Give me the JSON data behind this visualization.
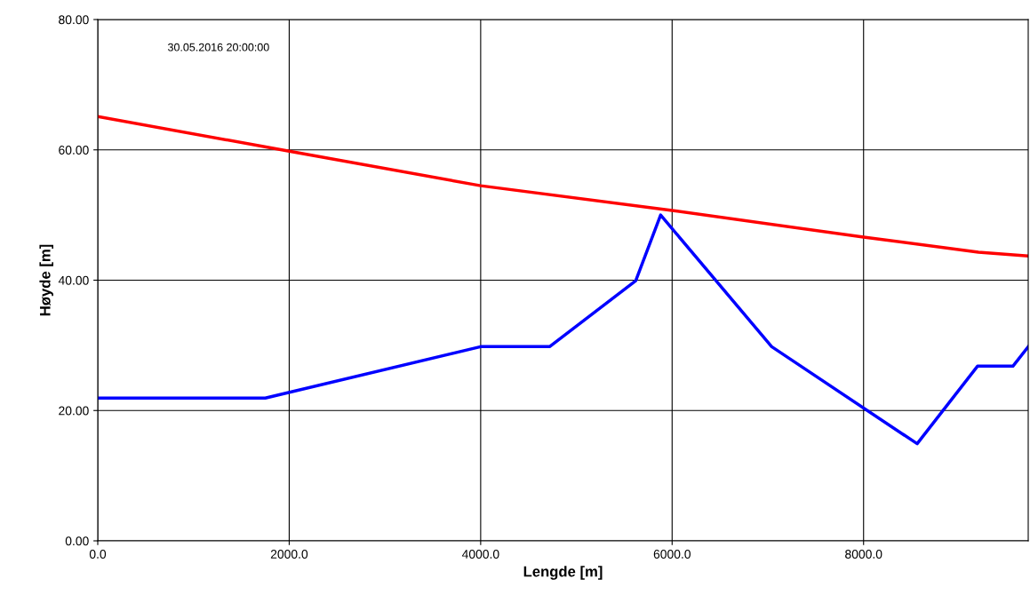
{
  "chart_data": {
    "type": "line",
    "xlabel": "Lengde [m]",
    "ylabel": "Høyde [m]",
    "annotations": [
      "30.05.2016 20:00:00"
    ],
    "series": [
      {
        "color": "#ff0000",
        "x": [
          0,
          2000,
          4000,
          6000,
          8000,
          9200,
          9720
        ],
        "values": [
          65.1,
          59.8,
          54.5,
          50.7,
          46.6,
          44.3,
          43.7
        ]
      },
      {
        "color": "#0000ff",
        "x": [
          0,
          1750,
          4000,
          4720,
          5620,
          5880,
          7040,
          8560,
          9190,
          9560,
          9720
        ],
        "values": [
          21.9,
          21.9,
          29.8,
          29.8,
          39.9,
          50,
          29.8,
          14.9,
          26.8,
          26.8,
          29.8
        ]
      }
    ],
    "xlim": [
      0,
      9720
    ],
    "ylim": [
      0,
      80
    ],
    "xticks": [
      {
        "value": 0,
        "label": "0.0"
      },
      {
        "value": 2000,
        "label": "2000.0"
      },
      {
        "value": 4000,
        "label": "4000.0"
      },
      {
        "value": 6000,
        "label": "6000.0"
      },
      {
        "value": 8000,
        "label": "8000.0"
      }
    ],
    "yticks": [
      {
        "value": 0,
        "label": "0.00"
      },
      {
        "value": 20,
        "label": "20.00"
      },
      {
        "value": 40,
        "label": "40.00"
      },
      {
        "value": 60,
        "label": "60.00"
      },
      {
        "value": 80,
        "label": "80.00"
      }
    ],
    "grid": true,
    "marker": "none",
    "line_style": "solid"
  }
}
